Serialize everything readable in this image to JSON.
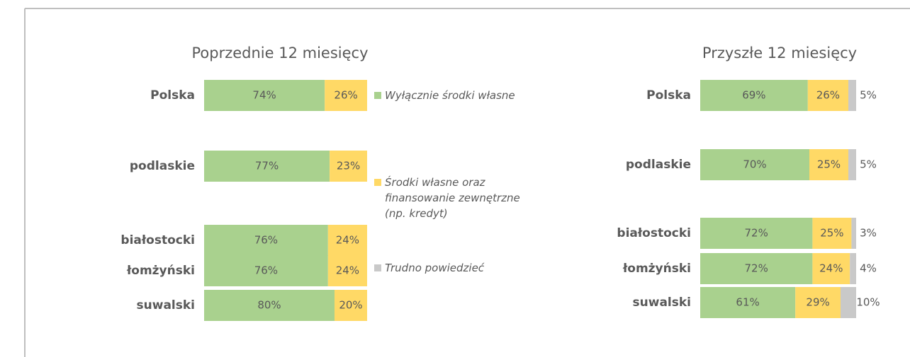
{
  "chart_data": [
    {
      "type": "stacked-bar-horizontal",
      "title": "Poprzednie 12 miesięcy",
      "categories": [
        "Polska",
        "podlaskie",
        "białostocki",
        "łomżyński",
        "suwalski"
      ],
      "xlim": [
        0,
        100
      ],
      "series": [
        {
          "name": "Wyłącznie środki własne",
          "color": "#a9d18e",
          "values": [
            74,
            77,
            76,
            76,
            80
          ],
          "value_labels": [
            "74%",
            "77%",
            "76%",
            "76%",
            "80%"
          ]
        },
        {
          "name": "Środki własne oraz finansowanie zewnętrzne (np. kredyt)",
          "color": "#ffd966",
          "values": [
            26,
            23,
            24,
            24,
            20
          ],
          "value_labels": [
            "26%",
            "23%",
            "24%",
            "24%",
            "20%"
          ]
        },
        {
          "name": "Trudno powiedzieć",
          "color": "#c9c9c9"
        }
      ]
    },
    {
      "type": "stacked-bar-horizontal",
      "title": "Przyszłe 12 miesięcy",
      "categories": [
        "Polska",
        "podlaskie",
        "białostocki",
        "łomżyński",
        "suwalski"
      ],
      "xlim": [
        0,
        100
      ],
      "series": [
        {
          "color": "#a9d18e",
          "values": [
            69,
            70,
            72,
            72,
            61
          ],
          "value_labels": [
            "69%",
            "70%",
            "72%",
            "72%",
            "61%"
          ]
        },
        {
          "color": "#ffd966",
          "values": [
            26,
            25,
            25,
            24,
            29
          ],
          "value_labels": [
            "26%",
            "25%",
            "25%",
            "24%",
            "29%"
          ]
        },
        {
          "color": "#c9c9c9",
          "values": [
            5,
            5,
            3,
            4,
            10
          ],
          "value_labels": [
            "5%",
            "5%",
            "3%",
            "4%",
            "10%"
          ],
          "label_position": "outside"
        }
      ]
    }
  ]
}
